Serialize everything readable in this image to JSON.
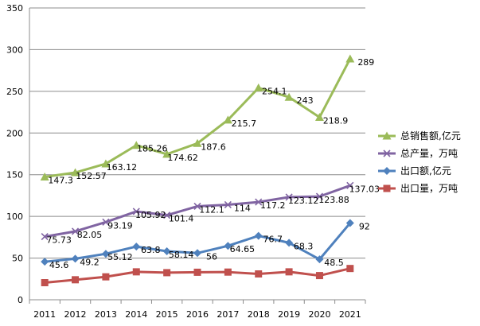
{
  "chart_data": {
    "type": "line",
    "title": "",
    "xlabel": "",
    "ylabel": "",
    "ylim": [
      0,
      350
    ],
    "yticks": [
      0,
      50,
      100,
      150,
      200,
      250,
      300,
      350
    ],
    "grid": true,
    "legend_position": "right",
    "categories": [
      "2011",
      "2012",
      "2013",
      "2014",
      "2015",
      "2016",
      "2017",
      "2018",
      "2019",
      "2020",
      "2021"
    ],
    "series": [
      {
        "name": "总销售额,亿元",
        "color": "#9BBB59",
        "marker": "triangle",
        "values": [
          147.3,
          152.57,
          163.12,
          185.26,
          174.62,
          187.6,
          215.7,
          254.1,
          243,
          218.9,
          289
        ],
        "labels": [
          "147.3",
          "152.57",
          "163.12",
          "185.26",
          "174.62",
          "187.6",
          "215.7",
          "254.1",
          "243",
          "218.9",
          "289"
        ]
      },
      {
        "name": "总产量，万吨",
        "color": "#8064A2",
        "marker": "x",
        "values": [
          75.73,
          82.05,
          93.19,
          105.92,
          101.4,
          112.1,
          114,
          117.2,
          123.12,
          123.88,
          137.03
        ],
        "labels": [
          "75.73",
          "82.05",
          "93.19",
          "105.92",
          "101.4",
          "112.1",
          "114",
          "117.2",
          "123.12",
          "123.88",
          "137.03"
        ]
      },
      {
        "name": "出口额,亿元",
        "color": "#4F81BD",
        "marker": "diamond",
        "values": [
          45.6,
          49.2,
          55.12,
          63.8,
          58.14,
          56,
          64.65,
          76.7,
          68.3,
          48.5,
          92
        ],
        "labels": [
          "45.6",
          "49.2",
          "55.12",
          "63.8",
          "58.14",
          "56",
          "64.65",
          "76.7",
          "68.3",
          "48.5",
          "92"
        ]
      },
      {
        "name": "出口量，万吨",
        "color": "#C0504D",
        "marker": "square",
        "values": [
          20.5,
          24,
          27.5,
          33.5,
          32.5,
          33,
          33.2,
          31,
          33.5,
          29,
          37.5
        ],
        "labels": []
      }
    ]
  }
}
